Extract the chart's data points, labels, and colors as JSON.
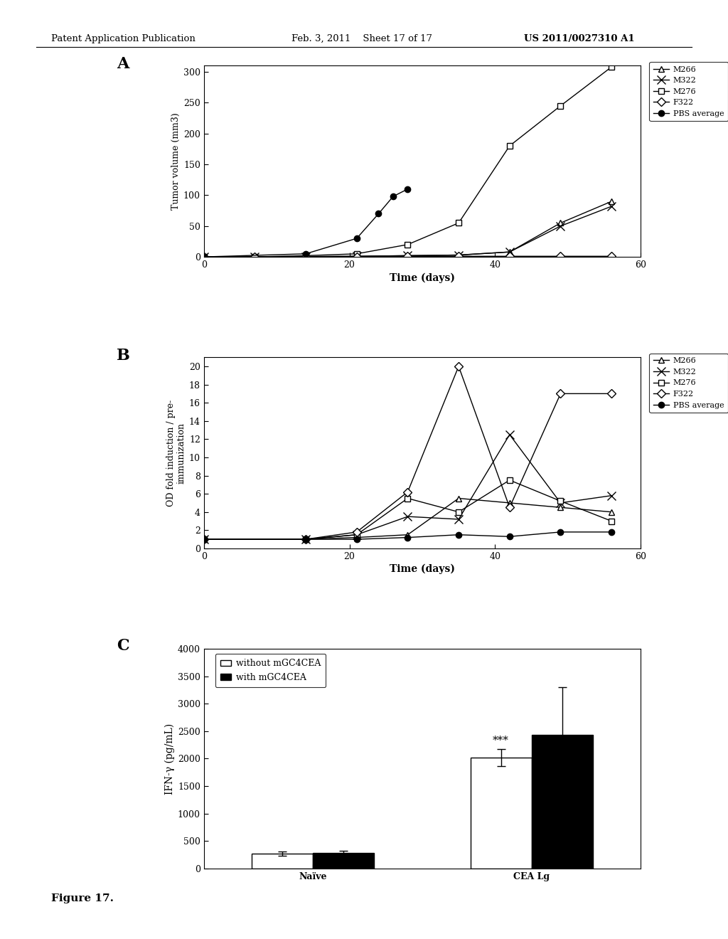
{
  "panel_A": {
    "label": "A",
    "xlabel": "Time (days)",
    "ylabel": "Tumor volume (mm3)",
    "xlim": [
      0,
      60
    ],
    "ylim": [
      0,
      310
    ],
    "yticks": [
      0,
      50,
      100,
      150,
      200,
      250,
      300
    ],
    "xticks": [
      0,
      20,
      40,
      60
    ],
    "series": {
      "M266": {
        "x": [
          0,
          7,
          14,
          21,
          28,
          35,
          42,
          49,
          56
        ],
        "y": [
          0,
          0,
          0.5,
          1,
          2,
          3,
          8,
          55,
          90
        ],
        "marker": "^",
        "filled": false,
        "label": "M266"
      },
      "M322": {
        "x": [
          0,
          7,
          14,
          21,
          28,
          35,
          42,
          49,
          56
        ],
        "y": [
          0,
          0,
          0.5,
          1,
          2,
          3,
          8,
          50,
          82
        ],
        "marker": "x",
        "filled": false,
        "label": "M322"
      },
      "M276": {
        "x": [
          0,
          7,
          14,
          21,
          28,
          35,
          42,
          49,
          56
        ],
        "y": [
          0,
          0,
          2,
          5,
          20,
          55,
          180,
          245,
          308
        ],
        "marker": "s",
        "filled": false,
        "label": "M276"
      },
      "F322": {
        "x": [
          0,
          7,
          14,
          21,
          28,
          35,
          42,
          49,
          56
        ],
        "y": [
          0,
          0,
          0,
          0.5,
          1,
          1,
          1,
          1,
          1
        ],
        "marker": "D",
        "filled": false,
        "label": "F322"
      },
      "PBS": {
        "x": [
          0,
          14,
          21,
          24,
          26,
          28
        ],
        "y": [
          0,
          5,
          30,
          70,
          98,
          110
        ],
        "marker": "o",
        "filled": true,
        "label": "PBS average"
      }
    },
    "legend_entries": [
      "M266",
      "M322",
      "M276",
      "F322",
      "PBS average"
    ],
    "legend_markers": [
      "^",
      "x",
      "s",
      "D",
      "o"
    ],
    "legend_filled": [
      false,
      false,
      false,
      false,
      true
    ]
  },
  "panel_B": {
    "label": "B",
    "xlabel": "Time (days)",
    "ylabel": "OD fold induction / pre-\nimmunization",
    "xlim": [
      0,
      60
    ],
    "ylim": [
      0,
      21
    ],
    "yticks": [
      0,
      2,
      4,
      6,
      8,
      10,
      12,
      14,
      16,
      18,
      20
    ],
    "xticks": [
      0,
      20,
      40,
      60
    ],
    "series": {
      "M266": {
        "x": [
          0,
          14,
          21,
          28,
          35,
          42,
          49,
          56
        ],
        "y": [
          1,
          1,
          1.2,
          1.5,
          5.5,
          5.0,
          4.5,
          4.0
        ],
        "marker": "^",
        "filled": false,
        "label": "M266"
      },
      "M322": {
        "x": [
          0,
          14,
          21,
          28,
          35,
          42,
          49,
          56
        ],
        "y": [
          1,
          1,
          1.5,
          3.5,
          3.2,
          12.5,
          5.0,
          5.8
        ],
        "marker": "x",
        "filled": false,
        "label": "M322"
      },
      "M276": {
        "x": [
          0,
          14,
          21,
          28,
          35,
          42,
          49,
          56
        ],
        "y": [
          1,
          1,
          1.5,
          5.5,
          4.0,
          7.5,
          5.2,
          3.0
        ],
        "marker": "s",
        "filled": false,
        "label": "M276"
      },
      "F322": {
        "x": [
          0,
          14,
          21,
          28,
          35,
          42,
          49,
          56
        ],
        "y": [
          1,
          1,
          1.8,
          6.2,
          20.0,
          4.5,
          17.0,
          17.0
        ],
        "marker": "D",
        "filled": false,
        "label": "F322"
      },
      "PBS": {
        "x": [
          0,
          14,
          21,
          28,
          35,
          42,
          49,
          56
        ],
        "y": [
          1,
          1,
          1.0,
          1.2,
          1.5,
          1.3,
          1.8,
          1.8
        ],
        "marker": "o",
        "filled": true,
        "label": "PBS average"
      }
    },
    "legend_entries": [
      "M266",
      "M322",
      "M276",
      "F322",
      "PBS average"
    ],
    "legend_markers": [
      "^",
      "x",
      "s",
      "D",
      "o"
    ],
    "legend_filled": [
      false,
      false,
      false,
      false,
      true
    ]
  },
  "panel_C": {
    "label": "C",
    "ylabel": "IFN-γ (pg/mL)",
    "ylim": [
      0,
      4000
    ],
    "yticks": [
      0,
      500,
      1000,
      1500,
      2000,
      2500,
      3000,
      3500,
      4000
    ],
    "categories": [
      "Naïve",
      "CEA Lg"
    ],
    "bar_without": [
      270,
      2020
    ],
    "bar_with": [
      280,
      2430
    ],
    "err_without": [
      40,
      160
    ],
    "err_with": [
      50,
      870
    ],
    "annotation": "***",
    "legend_labels": [
      "without mGC4CEA",
      "with mGC4CEA"
    ],
    "bar_width": 0.28,
    "bar_color_without": "white",
    "bar_color_with": "black",
    "bar_edgecolor": "black"
  },
  "header_left": "Patent Application Publication",
  "header_center": "Feb. 3, 2011    Sheet 17 of 17",
  "header_right": "US 2011/0027310 A1",
  "footer": "Figure 17.",
  "bg_color": "white"
}
